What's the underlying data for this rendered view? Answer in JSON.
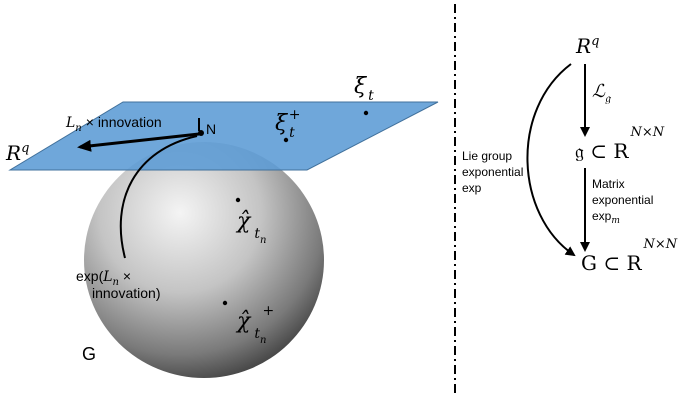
{
  "left_panel": {
    "plane_label": "R",
    "plane_label_sup": "q",
    "identity_label": "N",
    "tangent_arrow_label": "L",
    "tangent_arrow_label_sub": "n",
    "tangent_arrow_label_rest": "× innovation",
    "xi_t": "ξ",
    "xi_t_sub": "t",
    "xi_t_plus": "ξ",
    "xi_t_plus_sub": "t",
    "xi_t_plus_sup": "+",
    "chi_hat": "χ̂",
    "chi_hat_sub": "t",
    "chi_hat_subsub": "n",
    "chi_hat_plus": "χ̂",
    "chi_hat_plus_sub": "t",
    "chi_hat_plus_subsub": "n",
    "chi_hat_plus_sup": "+",
    "exp_label_line1_pre": "exp(",
    "exp_label_line1_L": "L",
    "exp_label_line1_sub": "n",
    "exp_label_line1_post": " ×",
    "exp_label_line2": "innovation)",
    "group_label": "G"
  },
  "right_panel": {
    "top_label": "R",
    "top_label_sup": "q",
    "lie_map_label": "ℒ",
    "lie_map_sub": "𝔤",
    "algebra_label": "𝔤 ⊂ R",
    "algebra_sup": "N×N",
    "matrix_exp_line1": "Matrix",
    "matrix_exp_line2": "exponential",
    "matrix_exp_line3": "exp",
    "matrix_exp_line3_sub": "m",
    "lie_group_line1": "Lie group",
    "lie_group_line2": "exponential",
    "lie_group_line3": "exp",
    "group_label": "G ⊂ R",
    "group_sup": "N×N"
  },
  "colors": {
    "plane": "#5b9bd5",
    "sphere_light": "#f2f2f2",
    "sphere_dark": "#3a3a3a",
    "ink": "#000000"
  }
}
